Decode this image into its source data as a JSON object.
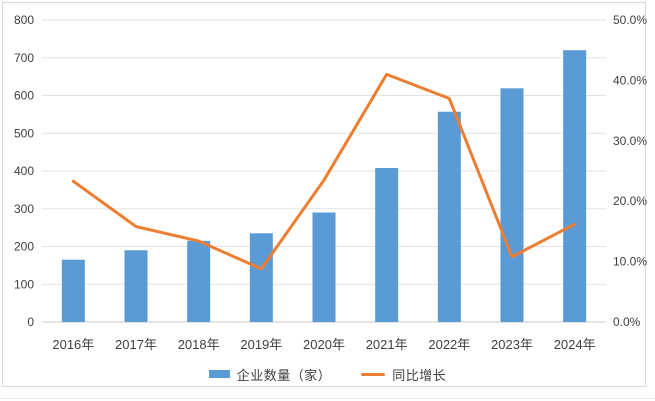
{
  "frame": {
    "background": "#ffffff",
    "border_color": "#d9d9d9"
  },
  "colors": {
    "bar": "#5B9BD5",
    "line": "#ED7D31",
    "gridline": "#e3e3e3",
    "axis_line": "#c9c9c9",
    "axis_text": "#404040"
  },
  "chart_data": {
    "type": "bar+line combo",
    "title": "",
    "categories": [
      "2016年",
      "2017年",
      "2018年",
      "2019年",
      "2020年",
      "2021年",
      "2022年",
      "2023年",
      "2024年"
    ],
    "series": [
      {
        "name": "企业数量（家）",
        "type": "bar",
        "axis": "left",
        "color": "#5B9BD5",
        "values": [
          165,
          190,
          215,
          235,
          290,
          408,
          557,
          619,
          720
        ]
      },
      {
        "name": "同比增长",
        "type": "line",
        "axis": "right",
        "color": "#ED7D31",
        "values": [
          23.3,
          15.8,
          13.4,
          8.8,
          23.5,
          41.0,
          37.0,
          10.8,
          16.2
        ]
      }
    ],
    "left_axis": {
      "min": 0,
      "max": 800,
      "step": 100,
      "tick_labels": [
        "0",
        "100",
        "200",
        "300",
        "400",
        "500",
        "600",
        "700",
        "800"
      ]
    },
    "right_axis": {
      "min": 0,
      "max": 50,
      "step": 10,
      "tick_labels": [
        "0.0%",
        "10.0%",
        "20.0%",
        "30.0%",
        "40.0%",
        "50.0%"
      ]
    },
    "grid": true,
    "legend_position": "bottom"
  }
}
